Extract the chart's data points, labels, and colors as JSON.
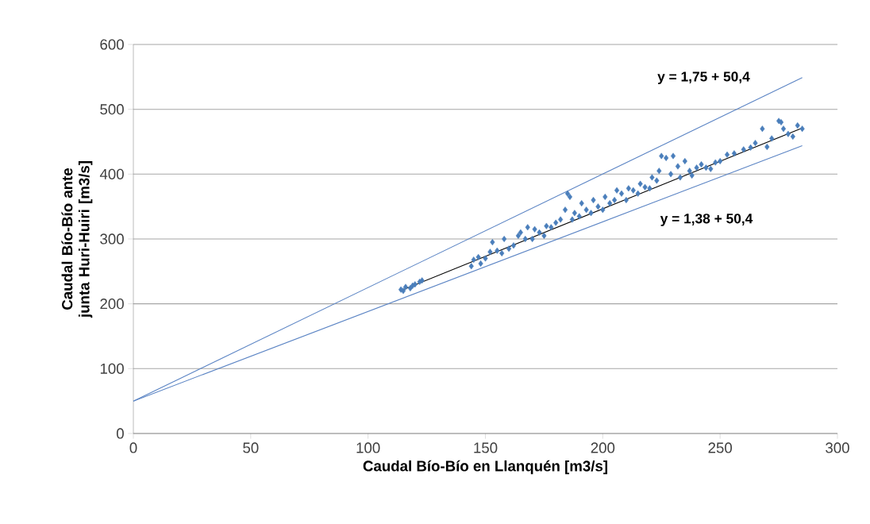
{
  "chart_data": {
    "type": "scatter",
    "xlabel": "Caudal Bío-Bío en Llanquén  [m3/s]",
    "ylabel": "Caudal Bío-Bío ante junta Huri-Huiri [m3/s]",
    "xlim": [
      0,
      300
    ],
    "xticks": [
      0,
      50,
      100,
      150,
      200,
      250,
      300
    ],
    "ylim": [
      0,
      600
    ],
    "yticks": [
      0,
      100,
      200,
      300,
      400,
      500,
      600
    ],
    "grid": "y",
    "marker": "diamond",
    "annotations": [
      "y = 1,75 + 50,4",
      "y = 1,38 + 50,4"
    ],
    "series": [
      {
        "type": "line",
        "marker": "none",
        "color": "#5b84c4",
        "x": [
          0,
          285
        ],
        "values": [
          50,
          549
        ]
      },
      {
        "type": "line",
        "marker": "none",
        "color": "#5b84c4",
        "x": [
          0,
          285
        ],
        "values": [
          50,
          444
        ]
      },
      {
        "color": "#4a7ebb",
        "x": [
          114,
          116,
          118,
          120,
          122,
          119,
          123,
          115,
          144,
          145,
          147,
          150,
          152,
          148,
          155,
          157,
          153,
          158,
          160,
          162,
          164,
          165,
          167,
          168,
          170,
          171,
          173,
          175,
          176,
          178,
          180,
          182,
          184,
          185,
          186,
          187,
          188,
          190,
          191,
          193,
          195,
          196,
          198,
          200,
          201,
          203,
          205,
          206,
          208,
          210,
          211,
          213,
          215,
          216,
          218,
          220,
          221,
          223,
          224,
          225,
          227,
          229,
          230,
          232,
          233,
          235,
          237,
          238,
          240,
          242,
          244,
          246,
          248,
          250,
          253,
          256,
          260,
          263,
          265,
          268,
          270,
          272,
          275,
          276,
          277,
          279,
          281,
          283,
          285
        ],
        "values": [
          222,
          226,
          224,
          230,
          234,
          228,
          236,
          220,
          258,
          268,
          272,
          270,
          280,
          262,
          282,
          278,
          295,
          300,
          285,
          290,
          305,
          310,
          300,
          318,
          300,
          315,
          310,
          305,
          320,
          318,
          325,
          330,
          345,
          370,
          365,
          330,
          340,
          335,
          355,
          345,
          340,
          360,
          350,
          345,
          365,
          355,
          360,
          375,
          370,
          360,
          378,
          375,
          370,
          385,
          380,
          378,
          395,
          390,
          405,
          428,
          425,
          400,
          428,
          412,
          395,
          420,
          405,
          398,
          410,
          415,
          410,
          408,
          418,
          420,
          430,
          432,
          438,
          441,
          448,
          470,
          442,
          455,
          482,
          480,
          470,
          462,
          458,
          475,
          470
        ]
      },
      {
        "type": "line",
        "marker": "none",
        "color": "#000000",
        "x": [
          115,
          285
        ],
        "values": [
          222,
          471
        ]
      }
    ]
  }
}
